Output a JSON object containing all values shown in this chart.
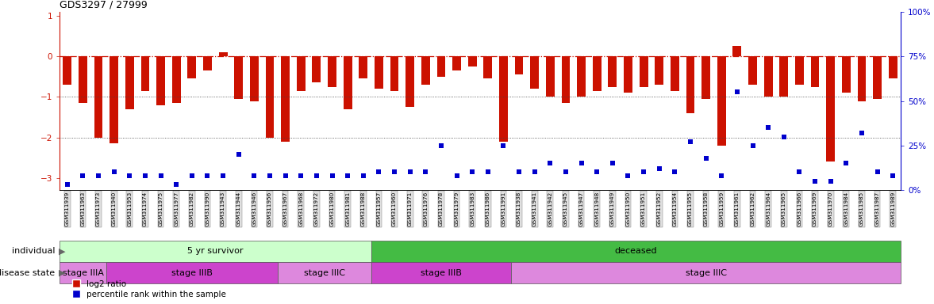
{
  "title": "GDS3297 / 27999",
  "samples": [
    "GSM311939",
    "GSM311963",
    "GSM311973",
    "GSM311940",
    "GSM311953",
    "GSM311974",
    "GSM311975",
    "GSM311977",
    "GSM311982",
    "GSM311990",
    "GSM311943",
    "GSM311944",
    "GSM311946",
    "GSM311956",
    "GSM311967",
    "GSM311968",
    "GSM311972",
    "GSM311980",
    "GSM311981",
    "GSM311988",
    "GSM311957",
    "GSM311960",
    "GSM311971",
    "GSM311976",
    "GSM311978",
    "GSM311979",
    "GSM311983",
    "GSM311986",
    "GSM311991",
    "GSM311938",
    "GSM311941",
    "GSM311942",
    "GSM311945",
    "GSM311947",
    "GSM311948",
    "GSM311949",
    "GSM311950",
    "GSM311951",
    "GSM311952",
    "GSM311954",
    "GSM311955",
    "GSM311958",
    "GSM311959",
    "GSM311961",
    "GSM311962",
    "GSM311964",
    "GSM311965",
    "GSM311966",
    "GSM311969",
    "GSM311970",
    "GSM311984",
    "GSM311985",
    "GSM311987",
    "GSM311989"
  ],
  "log2_ratio": [
    -0.7,
    -1.15,
    -2.0,
    -2.15,
    -1.3,
    -0.85,
    -1.2,
    -1.15,
    -0.55,
    -0.35,
    0.1,
    -1.05,
    -1.1,
    -2.0,
    -2.1,
    -0.85,
    -0.65,
    -0.75,
    -1.3,
    -0.55,
    -0.8,
    -0.85,
    -1.25,
    -0.7,
    -0.5,
    -0.35,
    -0.25,
    -0.55,
    -2.1,
    -0.45,
    -0.8,
    -1.0,
    -1.15,
    -1.0,
    -0.85,
    -0.75,
    -0.9,
    -0.75,
    -0.7,
    -0.85,
    -1.4,
    -1.05,
    -2.2,
    0.25,
    -0.7,
    -1.0,
    -1.0,
    -0.7,
    -0.75,
    -2.6,
    -0.9,
    -1.1,
    -1.05,
    -0.55
  ],
  "percentile": [
    3,
    8,
    8,
    10,
    8,
    8,
    8,
    3,
    8,
    8,
    8,
    20,
    8,
    8,
    8,
    8,
    8,
    8,
    8,
    8,
    10,
    10,
    10,
    10,
    25,
    8,
    10,
    10,
    25,
    10,
    10,
    15,
    10,
    15,
    10,
    15,
    8,
    10,
    12,
    10,
    27,
    18,
    8,
    55,
    25,
    35,
    30,
    10,
    5,
    5,
    15,
    32,
    10,
    8
  ],
  "individual_groups": [
    {
      "label": "5 yr survivor",
      "start": 0,
      "end": 20,
      "color": "#ccffcc"
    },
    {
      "label": "deceased",
      "start": 20,
      "end": 54,
      "color": "#44bb44"
    }
  ],
  "disease_groups": [
    {
      "label": "stage IIIA",
      "start": 0,
      "end": 3,
      "color": "#dd88dd"
    },
    {
      "label": "stage IIIB",
      "start": 3,
      "end": 14,
      "color": "#cc44cc"
    },
    {
      "label": "stage IIIC",
      "start": 14,
      "end": 20,
      "color": "#dd88dd"
    },
    {
      "label": "stage IIIB",
      "start": 20,
      "end": 29,
      "color": "#cc44cc"
    },
    {
      "label": "stage IIIC",
      "start": 29,
      "end": 54,
      "color": "#dd88dd"
    }
  ],
  "ylim_left": [
    -3.3,
    1.1
  ],
  "ylim_right": [
    0,
    100
  ],
  "left_yticks": [
    -3,
    -2,
    -1,
    0,
    1
  ],
  "right_yticks": [
    0,
    25,
    50,
    75,
    100
  ],
  "right_yticklabels": [
    "0%",
    "25%",
    "50%",
    "75%",
    "100%"
  ],
  "bar_color": "#cc1100",
  "dot_color": "#0000cc"
}
